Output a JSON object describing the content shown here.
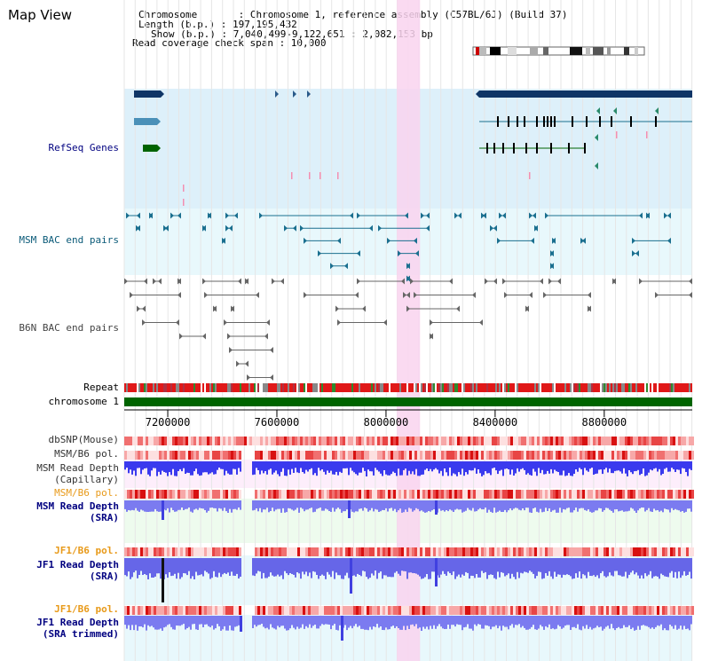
{
  "page_title": "Map View",
  "info": {
    "chromosome": "Chromosome       : Chromosome 1, reference assembly (C57BL/6J) (Build 37)",
    "length": "Length (b.p.) : 197,195,432",
    "show": "Show (b.p.) : 7,040,499-9,122,651 : 2,082,153 bp",
    "coverage": "Read coverage check span : 10,000"
  },
  "tracks": {
    "refseq": "RefSeq Genes",
    "msm_bac": "MSM BAC end pairs",
    "b6n_bac": "B6N BAC end pairs",
    "repeat": "Repeat",
    "chrom": "chromosome 1",
    "dbsnp": "dbSNP(Mouse)",
    "msm_b6_pol": "MSM/B6 pol.",
    "msm_depth_cap_1": "MSM Read Depth",
    "msm_depth_cap_2": "(Capillary)",
    "msm_b6_pol_2": "MSM/B6 pol.",
    "msm_depth_sra_1": "MSM Read Depth",
    "msm_depth_sra_2": "(SRA)",
    "jf1_b6_pol": "JF1/B6 pol.",
    "jf1_depth_sra_1": "JF1 Read Depth",
    "jf1_depth_sra_2": "(SRA)",
    "jf1_b6_pol_2": "JF1/B6 pol.",
    "jf1_depth_trim_1": "JF1 Read Depth",
    "jf1_depth_trim_2": "(SRA trimmed)"
  },
  "axis": {
    "ticks": [
      "7200000",
      "7600000",
      "8000000",
      "8400000",
      "8800000"
    ],
    "tick_values": [
      7200000,
      7600000,
      8000000,
      8400000,
      8800000
    ],
    "view_start": 7040499,
    "view_end": 9122651,
    "highlight_start": 8040000,
    "highlight_end": 8125000
  },
  "colors": {
    "refseq_bg": "#ddf0fa",
    "bac_bg": "#e8f8fc",
    "highlight": "#f9d4ee",
    "navy": "#0f3566",
    "teal": "#1a6f8f",
    "green": "#006400",
    "label_blue": "#000080",
    "label_orange": "#e89a1a"
  }
}
